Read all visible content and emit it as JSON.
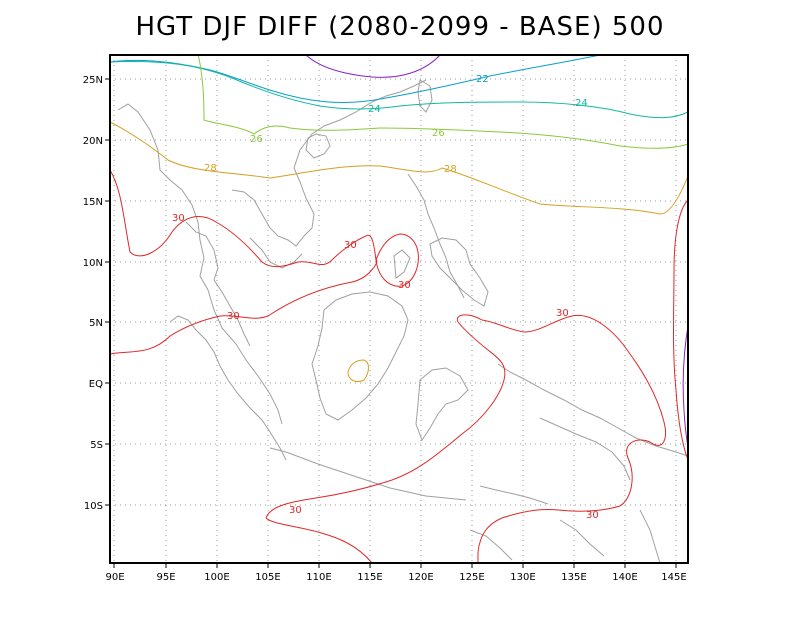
{
  "title": "HGT DJF DIFF (2080-2099 - BASE) 500",
  "map": {
    "x_ticks": [
      "90E",
      "95E",
      "100E",
      "105E",
      "110E",
      "115E",
      "120E",
      "125E",
      "130E",
      "135E",
      "140E",
      "145E"
    ],
    "y_ticks": [
      "25N",
      "20N",
      "15N",
      "10N",
      "5N",
      "EQ",
      "5S",
      "10S"
    ],
    "contour_labels": [
      {
        "text": "22",
        "color": "#0aa0c8"
      },
      {
        "text": "24",
        "color": "#10b8a0"
      },
      {
        "text": "24",
        "color": "#10b8a0"
      },
      {
        "text": "26",
        "color": "#8cc83c"
      },
      {
        "text": "26",
        "color": "#8cc83c"
      },
      {
        "text": "28",
        "color": "#d6a020"
      },
      {
        "text": "28",
        "color": "#d6a020"
      },
      {
        "text": "30",
        "color": "#e02828"
      },
      {
        "text": "30",
        "color": "#e02828"
      },
      {
        "text": "30",
        "color": "#e02828"
      },
      {
        "text": "30",
        "color": "#e02828"
      },
      {
        "text": "30",
        "color": "#e02828"
      },
      {
        "text": "30",
        "color": "#e02828"
      },
      {
        "text": "30",
        "color": "#e02828"
      }
    ],
    "colors": {
      "c20": "#8a20c8",
      "c22": "#0aa0c8",
      "c24": "#10b8a0",
      "c26": "#8cc83c",
      "c28": "#d6a020",
      "c30": "#e02828",
      "coast": "#a0a0a0",
      "grid": "#9a9a9a"
    }
  }
}
